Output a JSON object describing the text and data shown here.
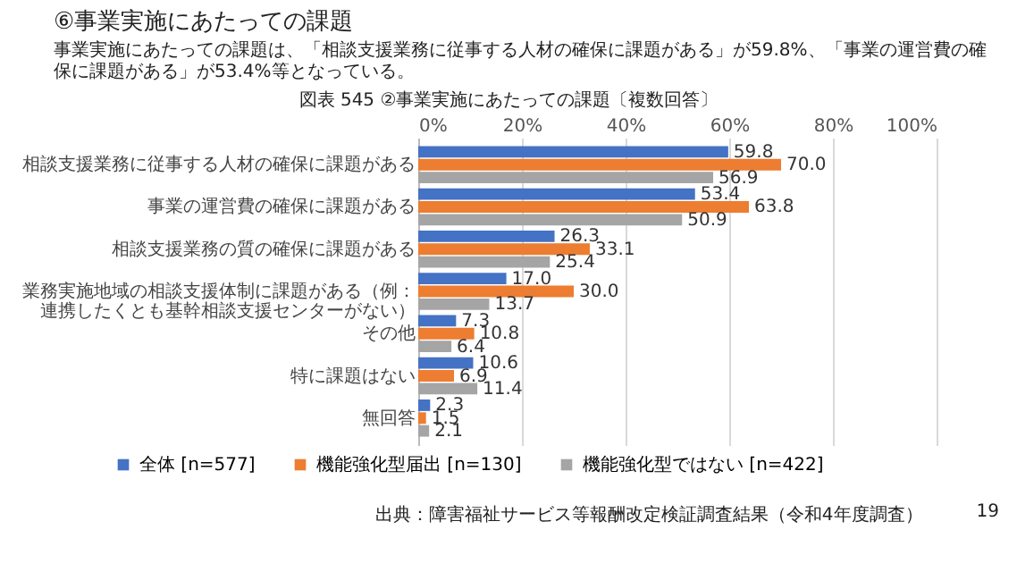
{
  "chart_data": {
    "type": "bar",
    "orientation": "horizontal",
    "title": "⑥事業実施にあたっての課題",
    "subtitle": "事業実施にあたっての課題は、「相談支援業務に従事する人材の確保に課題がある」が59.8%、「事業の運営費の確保に課題がある」が53.4%等となっている。",
    "annotations": [
      "図表 545 ②事業実施にあたっての課題〔複数回答〕",
      "出典：障害福祉サービス等報酬改定検証調査結果（令和4年度調査）",
      "19"
    ],
    "categories": [
      "相談支援業務に従事する人材の確保に課題がある",
      "事業の運営費の確保に課題がある",
      "相談支援業務の質の確保に課題がある",
      "業務実施地域の相談支援体制に課題がある（例：連携したくとも基幹相談支援センターがない）",
      "その他",
      "特に課題はない",
      "無回答"
    ],
    "series": [
      {
        "name": "全体 [n=577]",
        "color": "#4472c4",
        "values": [
          59.8,
          53.4,
          26.3,
          17.0,
          7.3,
          10.6,
          2.3
        ],
        "value_labels": [
          "59.8",
          "53.4",
          "26.3",
          "17.0",
          "7.3",
          "10.6",
          "2.3"
        ]
      },
      {
        "name": "機能強化型届出 [n=130]",
        "color": "#ed7d31",
        "values": [
          70.0,
          63.8,
          33.1,
          30.0,
          10.8,
          6.9,
          1.5
        ],
        "value_labels": [
          "70.0",
          "63.8",
          "33.1",
          "30.0",
          "10.8",
          "6.9",
          "1.5"
        ]
      },
      {
        "name": "機能強化型ではない [n=422]",
        "color": "#a5a5a5",
        "values": [
          56.9,
          50.9,
          25.4,
          13.7,
          6.4,
          11.4,
          2.1
        ],
        "value_labels": [
          "56.9",
          "50.9",
          "25.4",
          "13.7",
          "6.4",
          "11.4",
          "2.1"
        ]
      }
    ],
    "xlim": [
      0,
      100
    ],
    "xticks": [
      {
        "value": 0,
        "label": "0%"
      },
      {
        "value": 20,
        "label": "20%"
      },
      {
        "value": 40,
        "label": "40%"
      },
      {
        "value": 60,
        "label": "60%"
      },
      {
        "value": 80,
        "label": "80%"
      },
      {
        "value": 100,
        "label": "100%"
      }
    ],
    "grid": "x",
    "legend": "bottom"
  }
}
